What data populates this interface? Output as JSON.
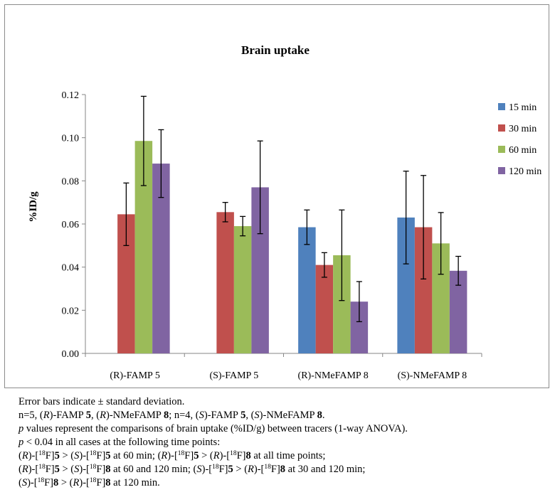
{
  "chart_data": {
    "type": "bar",
    "title": "Brain uptake",
    "ylabel": "%ID/g",
    "xlabel": "",
    "ylim": [
      0,
      0.12
    ],
    "yticks": [
      "0.00",
      "0.02",
      "0.04",
      "0.06",
      "0.08",
      "0.10",
      "0.12"
    ],
    "grid": false,
    "legend_position": "right",
    "categories": [
      "(R)-FAMP 5",
      "(S)-FAMP 5",
      "(R)-NMeFAMP 8",
      "(S)-NMeFAMP 8"
    ],
    "series": [
      {
        "name": "15 min",
        "color": "#4f81bd",
        "values": [
          null,
          null,
          0.0585,
          0.063
        ],
        "errors": [
          null,
          null,
          0.008,
          0.0215
        ]
      },
      {
        "name": "30 min",
        "color": "#c0504d",
        "values": [
          0.0645,
          0.0655,
          0.041,
          0.0585
        ],
        "errors": [
          0.0145,
          0.0045,
          0.0057,
          0.024
        ]
      },
      {
        "name": "60 min",
        "color": "#9bbb59",
        "values": [
          0.0985,
          0.059,
          0.0455,
          0.051
        ],
        "errors": [
          0.0207,
          0.0045,
          0.021,
          0.0143
        ]
      },
      {
        "name": "120 min",
        "color": "#8064a2",
        "values": [
          0.088,
          0.077,
          0.024,
          0.0383
        ],
        "errors": [
          0.0157,
          0.0215,
          0.0093,
          0.0067
        ]
      }
    ]
  },
  "caption": {
    "line1": "Error bars indicate ± standard deviation.",
    "line2": [
      "n=5, (",
      "R",
      ")-FAMP ",
      "5",
      ", (",
      "R",
      ")-NMeFAMP ",
      "8",
      "; n=4, (",
      "S",
      ")-FAMP ",
      "5",
      ", (",
      "S",
      ")-NMeFAMP ",
      "8",
      "."
    ],
    "line3": [
      "p",
      " values represent the comparisons of brain uptake (%ID/g) between tracers (1-way ANOVA)."
    ],
    "line4": [
      "p",
      " < 0.04 in all cases at the following time points:"
    ],
    "line5": [
      "(",
      "R",
      ")-[",
      "18",
      "F]",
      "5",
      " > (",
      "S",
      ")-[",
      "18",
      "F]",
      "5",
      " at 60 min; (",
      "R",
      ")-[",
      "18",
      "F]",
      "5",
      " > (",
      "R",
      ")-[",
      "18",
      "F]",
      "8",
      " at all time points;"
    ],
    "line6": [
      "(",
      "R",
      ")-[",
      "18",
      "F]",
      "5",
      " > (",
      "S",
      ")-[",
      "18",
      "F]",
      "8",
      " at 60 and 120 min; (",
      "S",
      ")-[",
      "18",
      "F]",
      "5",
      " > (",
      "R",
      ")-[",
      "18",
      "F]",
      "8",
      "  at 30 and 120 min;"
    ],
    "line7": [
      "(",
      "S",
      ")-[",
      "18",
      "F]",
      "8",
      " > (",
      "R",
      ")-[",
      "18",
      "F]",
      "8",
      " at 120 min."
    ]
  }
}
